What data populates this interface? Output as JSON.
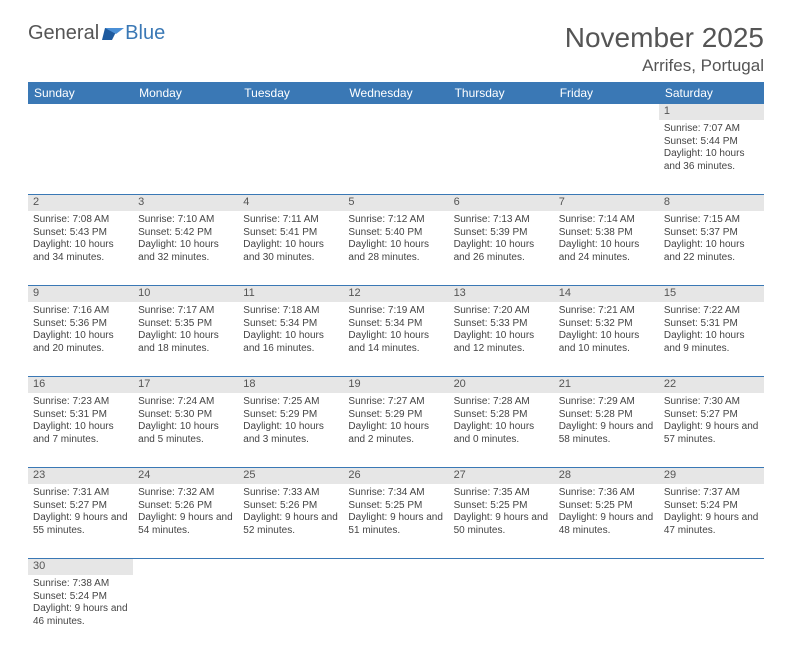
{
  "brand": {
    "part1": "General",
    "part2": "Blue"
  },
  "title": "November 2025",
  "location": "Arrifes, Portugal",
  "colors": {
    "header_bg": "#3a78b5",
    "header_text": "#ffffff",
    "daynum_bg": "#e6e6e6",
    "rule": "#3a78b5",
    "text": "#444444",
    "title_text": "#555555"
  },
  "weekdays": [
    "Sunday",
    "Monday",
    "Tuesday",
    "Wednesday",
    "Thursday",
    "Friday",
    "Saturday"
  ],
  "weeks": [
    [
      null,
      null,
      null,
      null,
      null,
      null,
      {
        "n": "1",
        "sr": "Sunrise: 7:07 AM",
        "ss": "Sunset: 5:44 PM",
        "dl": "Daylight: 10 hours and 36 minutes."
      }
    ],
    [
      {
        "n": "2",
        "sr": "Sunrise: 7:08 AM",
        "ss": "Sunset: 5:43 PM",
        "dl": "Daylight: 10 hours and 34 minutes."
      },
      {
        "n": "3",
        "sr": "Sunrise: 7:10 AM",
        "ss": "Sunset: 5:42 PM",
        "dl": "Daylight: 10 hours and 32 minutes."
      },
      {
        "n": "4",
        "sr": "Sunrise: 7:11 AM",
        "ss": "Sunset: 5:41 PM",
        "dl": "Daylight: 10 hours and 30 minutes."
      },
      {
        "n": "5",
        "sr": "Sunrise: 7:12 AM",
        "ss": "Sunset: 5:40 PM",
        "dl": "Daylight: 10 hours and 28 minutes."
      },
      {
        "n": "6",
        "sr": "Sunrise: 7:13 AM",
        "ss": "Sunset: 5:39 PM",
        "dl": "Daylight: 10 hours and 26 minutes."
      },
      {
        "n": "7",
        "sr": "Sunrise: 7:14 AM",
        "ss": "Sunset: 5:38 PM",
        "dl": "Daylight: 10 hours and 24 minutes."
      },
      {
        "n": "8",
        "sr": "Sunrise: 7:15 AM",
        "ss": "Sunset: 5:37 PM",
        "dl": "Daylight: 10 hours and 22 minutes."
      }
    ],
    [
      {
        "n": "9",
        "sr": "Sunrise: 7:16 AM",
        "ss": "Sunset: 5:36 PM",
        "dl": "Daylight: 10 hours and 20 minutes."
      },
      {
        "n": "10",
        "sr": "Sunrise: 7:17 AM",
        "ss": "Sunset: 5:35 PM",
        "dl": "Daylight: 10 hours and 18 minutes."
      },
      {
        "n": "11",
        "sr": "Sunrise: 7:18 AM",
        "ss": "Sunset: 5:34 PM",
        "dl": "Daylight: 10 hours and 16 minutes."
      },
      {
        "n": "12",
        "sr": "Sunrise: 7:19 AM",
        "ss": "Sunset: 5:34 PM",
        "dl": "Daylight: 10 hours and 14 minutes."
      },
      {
        "n": "13",
        "sr": "Sunrise: 7:20 AM",
        "ss": "Sunset: 5:33 PM",
        "dl": "Daylight: 10 hours and 12 minutes."
      },
      {
        "n": "14",
        "sr": "Sunrise: 7:21 AM",
        "ss": "Sunset: 5:32 PM",
        "dl": "Daylight: 10 hours and 10 minutes."
      },
      {
        "n": "15",
        "sr": "Sunrise: 7:22 AM",
        "ss": "Sunset: 5:31 PM",
        "dl": "Daylight: 10 hours and 9 minutes."
      }
    ],
    [
      {
        "n": "16",
        "sr": "Sunrise: 7:23 AM",
        "ss": "Sunset: 5:31 PM",
        "dl": "Daylight: 10 hours and 7 minutes."
      },
      {
        "n": "17",
        "sr": "Sunrise: 7:24 AM",
        "ss": "Sunset: 5:30 PM",
        "dl": "Daylight: 10 hours and 5 minutes."
      },
      {
        "n": "18",
        "sr": "Sunrise: 7:25 AM",
        "ss": "Sunset: 5:29 PM",
        "dl": "Daylight: 10 hours and 3 minutes."
      },
      {
        "n": "19",
        "sr": "Sunrise: 7:27 AM",
        "ss": "Sunset: 5:29 PM",
        "dl": "Daylight: 10 hours and 2 minutes."
      },
      {
        "n": "20",
        "sr": "Sunrise: 7:28 AM",
        "ss": "Sunset: 5:28 PM",
        "dl": "Daylight: 10 hours and 0 minutes."
      },
      {
        "n": "21",
        "sr": "Sunrise: 7:29 AM",
        "ss": "Sunset: 5:28 PM",
        "dl": "Daylight: 9 hours and 58 minutes."
      },
      {
        "n": "22",
        "sr": "Sunrise: 7:30 AM",
        "ss": "Sunset: 5:27 PM",
        "dl": "Daylight: 9 hours and 57 minutes."
      }
    ],
    [
      {
        "n": "23",
        "sr": "Sunrise: 7:31 AM",
        "ss": "Sunset: 5:27 PM",
        "dl": "Daylight: 9 hours and 55 minutes."
      },
      {
        "n": "24",
        "sr": "Sunrise: 7:32 AM",
        "ss": "Sunset: 5:26 PM",
        "dl": "Daylight: 9 hours and 54 minutes."
      },
      {
        "n": "25",
        "sr": "Sunrise: 7:33 AM",
        "ss": "Sunset: 5:26 PM",
        "dl": "Daylight: 9 hours and 52 minutes."
      },
      {
        "n": "26",
        "sr": "Sunrise: 7:34 AM",
        "ss": "Sunset: 5:25 PM",
        "dl": "Daylight: 9 hours and 51 minutes."
      },
      {
        "n": "27",
        "sr": "Sunrise: 7:35 AM",
        "ss": "Sunset: 5:25 PM",
        "dl": "Daylight: 9 hours and 50 minutes."
      },
      {
        "n": "28",
        "sr": "Sunrise: 7:36 AM",
        "ss": "Sunset: 5:25 PM",
        "dl": "Daylight: 9 hours and 48 minutes."
      },
      {
        "n": "29",
        "sr": "Sunrise: 7:37 AM",
        "ss": "Sunset: 5:24 PM",
        "dl": "Daylight: 9 hours and 47 minutes."
      }
    ],
    [
      {
        "n": "30",
        "sr": "Sunrise: 7:38 AM",
        "ss": "Sunset: 5:24 PM",
        "dl": "Daylight: 9 hours and 46 minutes."
      },
      null,
      null,
      null,
      null,
      null,
      null
    ]
  ]
}
